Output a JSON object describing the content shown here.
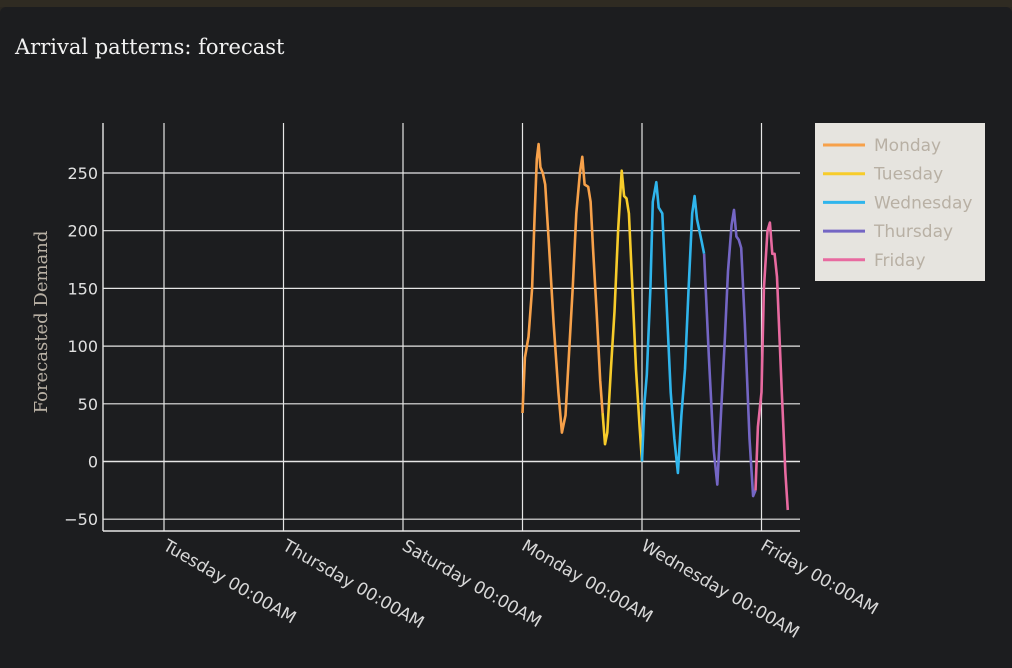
{
  "window": {
    "title": "Arrival patterns: forecast"
  },
  "chart_data": {
    "type": "line",
    "title": "Arrival patterns: forecast",
    "xlabel": "",
    "ylabel": "Forecasted Demand",
    "ylim": [
      -60,
      295
    ],
    "yticks": [
      -50,
      0,
      50,
      100,
      150,
      200,
      250
    ],
    "ytick_labels": [
      "−50",
      "0",
      "50",
      "100",
      "150",
      "200",
      "250"
    ],
    "xlim": [
      -3.5,
      4.15
    ],
    "xticks": [
      -3,
      -2,
      -1,
      0,
      1,
      2
    ],
    "xtick_labels": [
      "Tuesday 00:00AM",
      "Thursday 00:00AM",
      "Saturday 00:00AM",
      "Monday 00:00AM",
      "Wednesday 00:00AM",
      "Friday 00:00AM"
    ],
    "x_unit_note_days_per_tick": 2,
    "grid": true,
    "legend_position": "top-right",
    "series": [
      {
        "name": "Monday",
        "color": "#f7a14a",
        "points": [
          [
            0.0,
            42
          ],
          [
            0.02,
            90
          ],
          [
            0.05,
            108
          ],
          [
            0.08,
            150
          ],
          [
            0.1,
            210
          ],
          [
            0.12,
            262
          ],
          [
            0.135,
            275
          ],
          [
            0.15,
            255
          ],
          [
            0.17,
            250
          ],
          [
            0.19,
            240
          ],
          [
            0.22,
            190
          ],
          [
            0.26,
            120
          ],
          [
            0.3,
            60
          ],
          [
            0.33,
            25
          ],
          [
            0.36,
            40
          ],
          [
            0.39,
            95
          ],
          [
            0.42,
            150
          ],
          [
            0.45,
            215
          ],
          [
            0.48,
            250
          ],
          [
            0.5,
            264
          ],
          [
            0.52,
            240
          ],
          [
            0.55,
            238
          ],
          [
            0.57,
            225
          ],
          [
            0.59,
            185
          ],
          [
            0.62,
            130
          ],
          [
            0.65,
            70
          ],
          [
            0.67,
            42
          ]
        ]
      },
      {
        "name": "Tuesday",
        "color": "#f7cc2a",
        "points": [
          [
            0.67,
            42
          ],
          [
            0.69,
            15
          ],
          [
            0.71,
            25
          ],
          [
            0.74,
            80
          ],
          [
            0.77,
            130
          ],
          [
            0.8,
            200
          ],
          [
            0.83,
            252
          ],
          [
            0.85,
            230
          ],
          [
            0.87,
            228
          ],
          [
            0.89,
            215
          ],
          [
            0.92,
            150
          ],
          [
            0.95,
            80
          ],
          [
            0.98,
            30
          ],
          [
            1.0,
            0
          ]
        ]
      },
      {
        "name": "Wednesday",
        "color": "#2fb5ec",
        "points": [
          [
            1.0,
            0
          ],
          [
            1.02,
            50
          ],
          [
            1.04,
            75
          ],
          [
            1.07,
            150
          ],
          [
            1.09,
            225
          ],
          [
            1.12,
            242
          ],
          [
            1.14,
            220
          ],
          [
            1.17,
            215
          ],
          [
            1.2,
            150
          ],
          [
            1.24,
            60
          ],
          [
            1.27,
            20
          ],
          [
            1.3,
            -10
          ],
          [
            1.33,
            40
          ],
          [
            1.36,
            80
          ],
          [
            1.39,
            150
          ],
          [
            1.42,
            215
          ],
          [
            1.44,
            230
          ],
          [
            1.46,
            210
          ],
          [
            1.48,
            200
          ],
          [
            1.5,
            190
          ],
          [
            1.52,
            180
          ]
        ]
      },
      {
        "name": "Thursday",
        "color": "#7466c4",
        "points": [
          [
            1.52,
            180
          ],
          [
            1.56,
            90
          ],
          [
            1.6,
            10
          ],
          [
            1.63,
            -20
          ],
          [
            1.66,
            40
          ],
          [
            1.69,
            100
          ],
          [
            1.72,
            165
          ],
          [
            1.75,
            205
          ],
          [
            1.77,
            218
          ],
          [
            1.79,
            195
          ],
          [
            1.81,
            192
          ],
          [
            1.83,
            185
          ],
          [
            1.86,
            120
          ],
          [
            1.9,
            20
          ],
          [
            1.93,
            -30
          ],
          [
            1.95,
            -25
          ]
        ]
      },
      {
        "name": "Friday",
        "color": "#e86aa0",
        "points": [
          [
            1.95,
            -25
          ],
          [
            1.97,
            30
          ],
          [
            2.0,
            60
          ],
          [
            2.02,
            150
          ],
          [
            2.05,
            200
          ],
          [
            2.07,
            207
          ],
          [
            2.09,
            180
          ],
          [
            2.11,
            180
          ],
          [
            2.13,
            160
          ],
          [
            2.17,
            60
          ],
          [
            2.2,
            -10
          ],
          [
            2.22,
            -42
          ]
        ]
      }
    ]
  }
}
